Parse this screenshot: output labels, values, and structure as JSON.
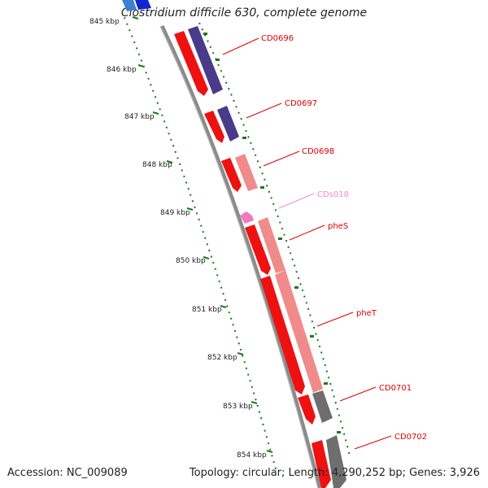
{
  "title": "Clostridium difficile 630, complete genome",
  "accession": "Accession: NC_009089",
  "summary": "Topology: circular; Length: 4,290,252 bp; Genes: 3,926",
  "colors": {
    "background": "#ffffff",
    "backbone": "#888888",
    "ticks": "#1a7a1a",
    "gene_red": "#ee1111",
    "gene_blue": "#4a3a8a",
    "gene_salmon": "#f08b8b",
    "gene_pink": "#f07ac0",
    "gene_gray": "#6e6e6e",
    "label_red": "#dd0000",
    "label_pink": "#f28ac2"
  },
  "kbp_labels": [
    "845 kbp",
    "846 kbp",
    "847 kbp",
    "848 kbp",
    "849 kbp",
    "850 kbp",
    "851 kbp",
    "852 kbp",
    "853 kbp",
    "854 kbp"
  ],
  "gene_labels": [
    {
      "name": "CD0696",
      "color": "label_red"
    },
    {
      "name": "CD0697",
      "color": "label_red"
    },
    {
      "name": "CD0698",
      "color": "label_red"
    },
    {
      "name": "CDs018",
      "color": "label_pink"
    },
    {
      "name": "pheS",
      "color": "label_red"
    },
    {
      "name": "pheT",
      "color": "label_red"
    },
    {
      "name": "CD0701",
      "color": "label_red"
    },
    {
      "name": "CD0702",
      "color": "label_red"
    }
  ]
}
